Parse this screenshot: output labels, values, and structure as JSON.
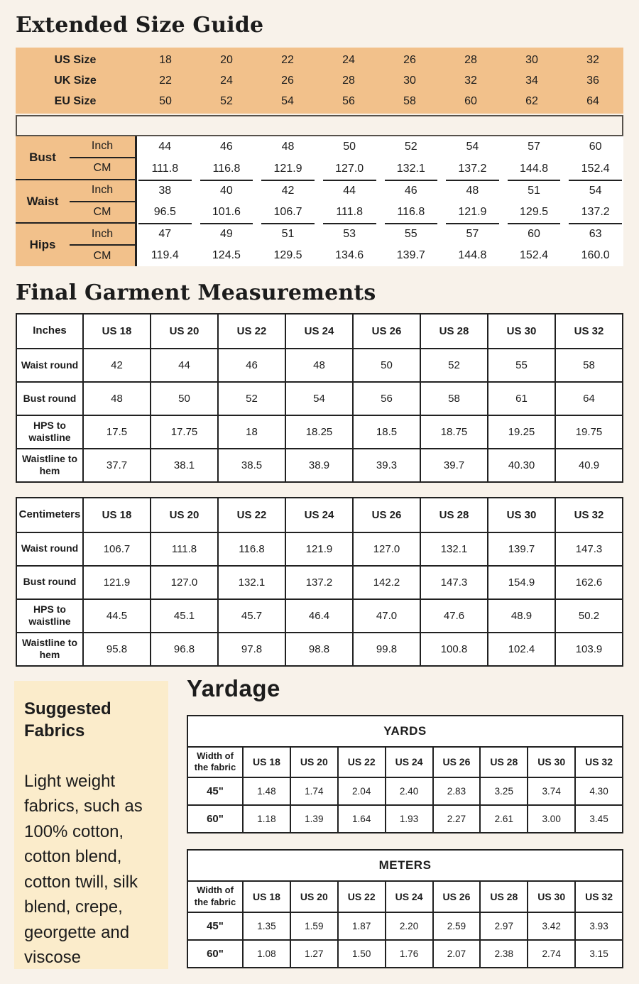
{
  "page": {
    "title1": "Extended Size Guide",
    "title2": "Final Garment Measurements",
    "yardage_title": "Yardage"
  },
  "colors": {
    "page_bg": "#f8f2ea",
    "accent_orange": "#f2c18b",
    "accent_cream": "#fbeccb",
    "table_border": "#212121"
  },
  "size_conversion": {
    "rows": [
      {
        "label": "US Size",
        "values": [
          "18",
          "20",
          "22",
          "24",
          "26",
          "28",
          "30",
          "32"
        ]
      },
      {
        "label": "UK Size",
        "values": [
          "22",
          "24",
          "26",
          "28",
          "30",
          "32",
          "34",
          "36"
        ]
      },
      {
        "label": "EU Size",
        "values": [
          "50",
          "52",
          "54",
          "56",
          "58",
          "60",
          "62",
          "64"
        ]
      }
    ]
  },
  "body_chart": {
    "groups": [
      {
        "label": "Bust",
        "unit1": "Inch",
        "unit2": "CM"
      },
      {
        "label": "Waist",
        "unit1": "Inch",
        "unit2": "CM"
      },
      {
        "label": "Hips",
        "unit1": "Inch",
        "unit2": "CM"
      }
    ],
    "rows": [
      {
        "values": [
          "44",
          "46",
          "48",
          "50",
          "52",
          "54",
          "57",
          "60"
        ]
      },
      {
        "values": [
          "111.8",
          "116.8",
          "121.9",
          "127.0",
          "132.1",
          "137.2",
          "144.8",
          "152.4"
        ]
      },
      {
        "values": [
          "38",
          "40",
          "42",
          "44",
          "46",
          "48",
          "51",
          "54"
        ]
      },
      {
        "values": [
          "96.5",
          "101.6",
          "106.7",
          "111.8",
          "116.8",
          "121.9",
          "129.5",
          "137.2"
        ]
      },
      {
        "values": [
          "47",
          "49",
          "51",
          "53",
          "55",
          "57",
          "60",
          "63"
        ]
      },
      {
        "values": [
          "119.4",
          "124.5",
          "129.5",
          "134.6",
          "139.7",
          "144.8",
          "152.4",
          "160.0"
        ]
      }
    ]
  },
  "garment_inches": {
    "rows": [
      {
        "label": "Inches",
        "values": [
          "US 18",
          "US 20",
          "US 22",
          "US 24",
          "US 26",
          "US 28",
          "US 30",
          "US 32"
        ],
        "header": true
      },
      {
        "label": "Waist round",
        "values": [
          "42",
          "44",
          "46",
          "48",
          "50",
          "52",
          "55",
          "58"
        ]
      },
      {
        "label": "Bust round",
        "values": [
          "48",
          "50",
          "52",
          "54",
          "56",
          "58",
          "61",
          "64"
        ]
      },
      {
        "label": "HPS to waistline",
        "values": [
          "17.5",
          "17.75",
          "18",
          "18.25",
          "18.5",
          "18.75",
          "19.25",
          "19.75"
        ]
      },
      {
        "label": "Waistline to hem",
        "values": [
          "37.7",
          "38.1",
          "38.5",
          "38.9",
          "39.3",
          "39.7",
          "40.30",
          "40.9"
        ]
      }
    ]
  },
  "garment_cm": {
    "rows": [
      {
        "label": "Centimeters",
        "values": [
          "US 18",
          "US 20",
          "US 22",
          "US 24",
          "US 26",
          "US 28",
          "US 30",
          "US 32"
        ],
        "header": true
      },
      {
        "label": "Waist round",
        "values": [
          "106.7",
          "111.8",
          "116.8",
          "121.9",
          "127.0",
          "132.1",
          "139.7",
          "147.3"
        ]
      },
      {
        "label": "Bust round",
        "values": [
          "121.9",
          "127.0",
          "132.1",
          "137.2",
          "142.2",
          "147.3",
          "154.9",
          "162.6"
        ]
      },
      {
        "label": "HPS to waistline",
        "values": [
          "44.5",
          "45.1",
          "45.7",
          "46.4",
          "47.0",
          "47.6",
          "48.9",
          "50.2"
        ]
      },
      {
        "label": "Waistline to hem",
        "values": [
          "95.8",
          "96.8",
          "97.8",
          "98.8",
          "99.8",
          "100.8",
          "102.4",
          "103.9"
        ]
      }
    ]
  },
  "fabrics": {
    "title": "Suggested Fabrics",
    "text": "Light weight fabrics, such as 100% cotton, cotton blend, cotton twill, silk blend, crepe, georgette and viscose"
  },
  "yardage": {
    "yards": {
      "title": "YARDS",
      "rows": [
        {
          "label": "Width of the fabric",
          "values": [
            "US 18",
            "US 20",
            "US 22",
            "US 24",
            "US 26",
            "US 28",
            "US 30",
            "US 32"
          ],
          "header": true
        },
        {
          "label": "45\"",
          "values": [
            "1.48",
            "1.74",
            "2.04",
            "2.40",
            "2.83",
            "3.25",
            "3.74",
            "4.30"
          ]
        },
        {
          "label": "60\"",
          "values": [
            "1.18",
            "1.39",
            "1.64",
            "1.93",
            "2.27",
            "2.61",
            "3.00",
            "3.45"
          ]
        }
      ]
    },
    "meters": {
      "title": "METERS",
      "rows": [
        {
          "label": "Width of the fabric",
          "values": [
            "US 18",
            "US 20",
            "US 22",
            "US 24",
            "US 26",
            "US 28",
            "US 30",
            "US 32"
          ],
          "header": true
        },
        {
          "label": "45\"",
          "values": [
            "1.35",
            "1.59",
            "1.87",
            "2.20",
            "2.59",
            "2.97",
            "3.42",
            "3.93"
          ]
        },
        {
          "label": "60\"",
          "values": [
            "1.08",
            "1.27",
            "1.50",
            "1.76",
            "2.07",
            "2.38",
            "2.74",
            "3.15"
          ]
        }
      ]
    }
  }
}
